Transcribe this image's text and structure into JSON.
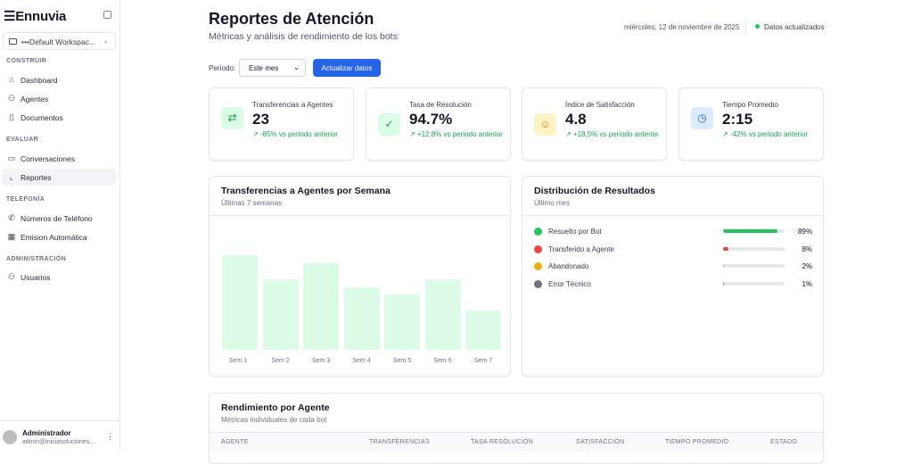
{
  "sidebar": {
    "brand": "Ennuvia",
    "workspace": "•••Default Workspac...",
    "sections": [
      {
        "title": "CONSTRUIR"
      },
      {
        "title": "EVALUAR"
      },
      {
        "title": "TELEFONÍA"
      },
      {
        "title": "ADMINISTRACIÓN"
      }
    ],
    "items": [
      {
        "label": "Dashboard",
        "icon": "home-icon"
      },
      {
        "label": "Agentes",
        "icon": "user-icon"
      },
      {
        "label": "Documentos",
        "icon": "book-icon"
      },
      {
        "label": "Conversaciones",
        "icon": "chat-icon"
      },
      {
        "label": "Reportes",
        "icon": "chart-icon",
        "active": true
      },
      {
        "label": "Números de Teléfono",
        "icon": "phone-icon"
      },
      {
        "label": "Emision Automática",
        "icon": "calendar-icon"
      },
      {
        "label": "Usuarios",
        "icon": "user-icon"
      }
    ],
    "user": {
      "name": "Administrador",
      "email": "admin@iniciasoluciones...."
    }
  },
  "header": {
    "title": "Reportes de Atención",
    "subtitle": "Métricas y análisis de rendimiento de los bots",
    "date": "miércoles, 12 de noviembre de 2025",
    "status": "Datos actualizados"
  },
  "filters": {
    "period_label": "Período:",
    "period_value": "Este mes",
    "refresh_label": "Actualizar datos"
  },
  "kpis": [
    {
      "label": "Transferencias a Agentes",
      "value": "23",
      "delta": "-85% vs periodo anterior",
      "icon": "arrows-swap-icon"
    },
    {
      "label": "Tasa de Resolución",
      "value": "94.7%",
      "delta": "+12.8% vs periodo anterior",
      "icon": "check-circle-icon"
    },
    {
      "label": "Índice de Satisfacción",
      "value": "4.8",
      "delta": "+18.5% vs periodo anterior",
      "icon": "smile-icon"
    },
    {
      "label": "Tiempo Promedio",
      "value": "2:15",
      "delta": "-42% vs periodo anterior",
      "icon": "clock-icon"
    }
  ],
  "weekly": {
    "title": "Transferencias a Agentes por Semana",
    "subtitle": "Últimas 7 semanas"
  },
  "chart_data": {
    "type": "bar",
    "title": "Transferencias a Agentes por Semana",
    "categories": [
      "Sem 1",
      "Sem 2",
      "Sem 3",
      "Sem 4",
      "Sem 5",
      "Sem 6",
      "Sem 7"
    ],
    "values": [
      12,
      9,
      11,
      8,
      7,
      9,
      5
    ],
    "ylim": [
      0,
      16
    ],
    "color": "#dcfce7"
  },
  "distribution": {
    "title": "Distribución de Resultados",
    "subtitle": "Último mes",
    "items": [
      {
        "label": "Resuelto por Bot",
        "pct": "89%",
        "value": 89,
        "color": "#22c55e"
      },
      {
        "label": "Transferido a Agente",
        "pct": "8%",
        "value": 8,
        "color": "#ef4444"
      },
      {
        "label": "Abandonado",
        "pct": "2%",
        "value": 2,
        "color": "#eab308"
      },
      {
        "label": "Error Técnico",
        "pct": "1%",
        "value": 1,
        "color": "#6b7280"
      }
    ]
  },
  "agents": {
    "title": "Rendimiento por Agente",
    "subtitle": "Métricas individuales de cada bot",
    "columns": [
      "AGENTE",
      "TRANSFERENCIAS",
      "TASA RESOLUCIÓN",
      "SATISFACCIÓN",
      "TIEMPO PROMEDIO",
      "ESTADO"
    ]
  }
}
